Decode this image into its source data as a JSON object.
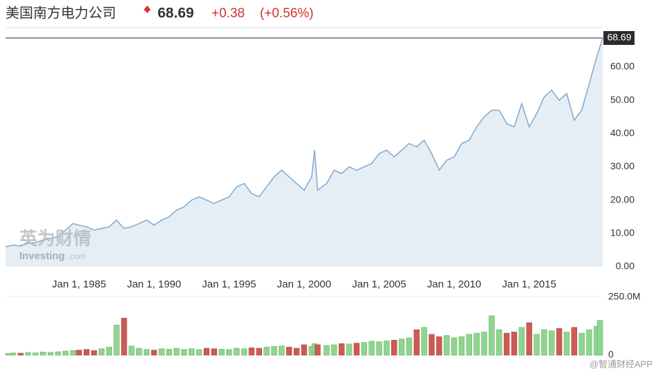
{
  "header": {
    "title": "美国南方电力公司",
    "price": "68.69",
    "change": "+0.38",
    "change_pct": "(+0.56%)"
  },
  "watermarks": {
    "brand_cn": "英为财情",
    "brand_en": "Investing",
    "brand_suffix": ".com",
    "source": "@智通财经APP"
  },
  "chart_data": [
    {
      "type": "line",
      "x": [
        1980.1,
        1980.6,
        1981.1,
        1981.6,
        1982.1,
        1982.6,
        1983.1,
        1983.6,
        1984.1,
        1984.6,
        1985,
        1985.5,
        1986,
        1986.5,
        1987,
        1987.5,
        1988,
        1988.5,
        1989,
        1989.5,
        1990,
        1990.5,
        1991,
        1991.5,
        1992,
        1992.5,
        1993,
        1993.5,
        1994,
        1994.5,
        1995,
        1995.5,
        1996,
        1996.5,
        1997,
        1997.5,
        1998,
        1998.5,
        1999,
        1999.5,
        2000,
        2000.5,
        2000.7,
        2000.9,
        2001.5,
        2002,
        2002.5,
        2003,
        2003.5,
        2004,
        2004.5,
        2005,
        2005.5,
        2006,
        2006.5,
        2007,
        2007.5,
        2008,
        2008.5,
        2009,
        2009.5,
        2010,
        2010.5,
        2011,
        2011.5,
        2012,
        2012.5,
        2013,
        2013.5,
        2014,
        2014.5,
        2015,
        2015.5,
        2016,
        2016.5,
        2017,
        2017.5,
        2018,
        2018.5,
        2019,
        2019.5,
        2019.9
      ],
      "values": [
        6,
        6.5,
        6.2,
        7,
        7.2,
        8,
        8.5,
        9,
        11,
        13,
        12.5,
        12,
        11,
        11.5,
        12,
        14,
        11.5,
        12,
        13,
        14,
        12.5,
        14,
        15,
        17,
        18,
        20,
        21,
        20,
        19,
        20,
        21,
        24,
        25,
        22,
        21,
        24,
        27,
        29,
        27,
        25,
        23,
        27,
        35,
        23,
        25,
        29,
        28,
        30,
        29,
        30,
        31,
        34,
        35,
        33,
        35,
        37,
        36,
        38,
        34,
        29,
        32,
        33,
        37,
        38,
        42,
        45,
        47,
        47,
        43,
        42,
        49,
        42,
        46,
        51,
        53,
        50,
        52,
        44,
        47,
        55,
        63,
        68.69
      ],
      "color": "#7fa7cf",
      "area_color": "#e6eef5",
      "xlim": [
        1980.1,
        2019.9
      ],
      "xticks": [
        {
          "value": 1985,
          "label": "Jan 1, 1985"
        },
        {
          "value": 1990,
          "label": "Jan 1, 1990"
        },
        {
          "value": 1995,
          "label": "Jan 1, 1995"
        },
        {
          "value": 2000,
          "label": "Jan 1, 2000"
        },
        {
          "value": 2005,
          "label": "Jan 1, 2005"
        },
        {
          "value": 2010,
          "label": "Jan 1, 2010"
        },
        {
          "value": 2015,
          "label": "Jan 1, 2015"
        }
      ],
      "ylim": [
        0,
        71.8
      ],
      "yticks": [
        {
          "value": 0,
          "label": "0.00"
        },
        {
          "value": 10,
          "label": "10.00"
        },
        {
          "value": 20,
          "label": "20.00"
        },
        {
          "value": 30,
          "label": "30.00"
        },
        {
          "value": 40,
          "label": "40.00"
        },
        {
          "value": 50,
          "label": "50.00"
        },
        {
          "value": 60,
          "label": "60.00"
        }
      ],
      "grid": false
    },
    {
      "type": "bar",
      "x": [
        1980.1,
        1980.6,
        1981.1,
        1981.6,
        1982.1,
        1982.6,
        1983.1,
        1983.6,
        1984.1,
        1984.6,
        1985,
        1985.5,
        1986,
        1986.5,
        1987,
        1987.5,
        1988,
        1988.5,
        1989,
        1989.5,
        1990,
        1990.5,
        1991,
        1991.5,
        1992,
        1992.5,
        1993,
        1993.5,
        1994,
        1994.5,
        1995,
        1995.5,
        1996,
        1996.5,
        1997,
        1997.5,
        1998,
        1998.5,
        1999,
        1999.5,
        2000,
        2000.5,
        2000.7,
        2000.9,
        2001.5,
        2002,
        2002.5,
        2003,
        2003.5,
        2004,
        2004.5,
        2005,
        2005.5,
        2006,
        2006.5,
        2007,
        2007.5,
        2008,
        2008.5,
        2009,
        2009.5,
        2010,
        2010.5,
        2011,
        2011.5,
        2012,
        2012.5,
        2013,
        2013.5,
        2014,
        2014.5,
        2015,
        2015.5,
        2016,
        2016.5,
        2017,
        2017.5,
        2018,
        2018.5,
        2019,
        2019.5,
        2019.9
      ],
      "values": [
        8,
        10,
        9,
        12,
        10,
        14,
        12,
        15,
        18,
        20,
        22,
        25,
        20,
        28,
        35,
        130,
        160,
        40,
        30,
        25,
        22,
        28,
        26,
        30,
        25,
        28,
        24,
        30,
        28,
        26,
        25,
        30,
        28,
        32,
        30,
        35,
        38,
        40,
        35,
        30,
        45,
        38,
        50,
        45,
        42,
        45,
        50,
        48,
        52,
        55,
        60,
        58,
        62,
        65,
        70,
        75,
        110,
        120,
        90,
        80,
        85,
        75,
        80,
        90,
        95,
        100,
        170,
        110,
        95,
        100,
        120,
        140,
        90,
        110,
        105,
        115,
        100,
        120,
        95,
        110,
        125,
        150
      ],
      "up_color": "#8fd48f",
      "down_color": "#cc5a55",
      "xlim": [
        1980.1,
        2019.9
      ],
      "ylim": [
        0,
        250
      ],
      "yticks": [
        0,
        {
          "value": 250,
          "label": "250.0M"
        }
      ]
    }
  ]
}
